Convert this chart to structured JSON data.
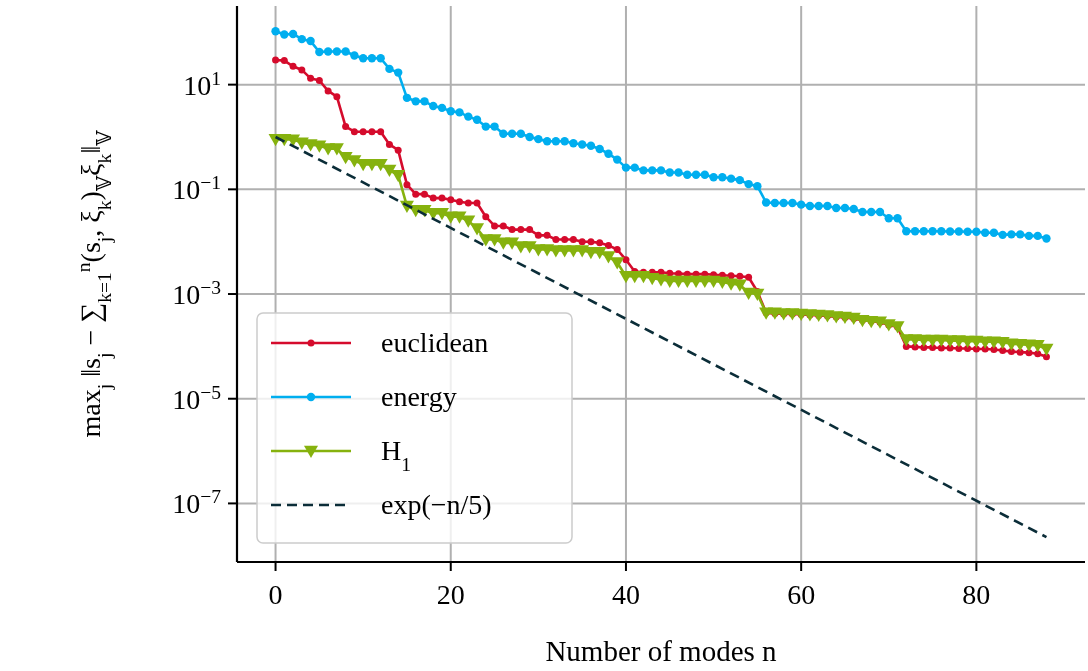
{
  "chart_data": {
    "type": "line",
    "xlabel": "Number of modes n",
    "ylabel": "max$_{j}$ ‖s$_{j}$ − ∑$_{k=1}$$^{n}$(s$_{j}$, ξ$_{k}$)$_{𝕍}$ξ$_{k}$‖$_{𝕍}$",
    "x": [
      0,
      1,
      2,
      3,
      4,
      5,
      6,
      7,
      8,
      9,
      10,
      11,
      12,
      13,
      14,
      15,
      16,
      17,
      18,
      19,
      20,
      21,
      22,
      23,
      24,
      25,
      26,
      27,
      28,
      29,
      30,
      31,
      32,
      33,
      34,
      35,
      36,
      37,
      38,
      39,
      40,
      41,
      42,
      43,
      44,
      45,
      46,
      47,
      48,
      49,
      50,
      51,
      52,
      53,
      54,
      55,
      56,
      57,
      58,
      59,
      60,
      61,
      62,
      63,
      64,
      65,
      66,
      67,
      68,
      69,
      70,
      71,
      72,
      73,
      74,
      75,
      76,
      77,
      78,
      79,
      80,
      81,
      82,
      83,
      84,
      85,
      86,
      87,
      88
    ],
    "series": [
      {
        "name": "euclidean",
        "color": "#d50b2c",
        "marker": "circle",
        "line_style": "solid",
        "values": [
          29.5,
          28.8,
          22.4,
          19.1,
          13.2,
          12.0,
          7.6,
          5.9,
          1.58,
          1.26,
          1.26,
          1.26,
          1.26,
          0.72,
          0.56,
          0.123,
          0.081,
          0.081,
          0.068,
          0.068,
          0.063,
          0.058,
          0.055,
          0.055,
          0.03,
          0.02,
          0.02,
          0.017,
          0.017,
          0.017,
          0.0132,
          0.0132,
          0.011,
          0.011,
          0.011,
          0.01,
          0.01,
          0.0095,
          0.0085,
          0.0071,
          0.0045,
          0.0027,
          0.0026,
          0.0026,
          0.0026,
          0.0025,
          0.00245,
          0.0024,
          0.0024,
          0.0024,
          0.00234,
          0.00229,
          0.00224,
          0.00219,
          0.00209,
          0.00112,
          0.000437,
          0.000427,
          0.000417,
          0.000417,
          0.000407,
          0.000398,
          0.000389,
          0.00038,
          0.000363,
          0.000355,
          0.000339,
          0.000316,
          0.000302,
          0.000288,
          0.000257,
          0.000234,
          0.0001,
          9.77e-05,
          9.55e-05,
          9.55e-05,
          9.33e-05,
          9.33e-05,
          9.12e-05,
          9.12e-05,
          8.91e-05,
          8.91e-05,
          8.71e-05,
          8.32e-05,
          7.94e-05,
          7.76e-05,
          7.59e-05,
          7.24e-05,
          6.31e-05
        ]
      },
      {
        "name": "energy",
        "color": "#00aeef",
        "marker": "circle",
        "line_style": "solid",
        "values": [
          105,
          91,
          93,
          74,
          68,
          42,
          43,
          43,
          43,
          36,
          32,
          32,
          32,
          20,
          17,
          5.6,
          4.8,
          4.8,
          3.9,
          3.6,
          3.1,
          2.95,
          2.45,
          2.14,
          1.58,
          1.58,
          1.15,
          1.15,
          1.15,
          1.0,
          0.91,
          0.83,
          0.83,
          0.83,
          0.76,
          0.72,
          0.68,
          0.59,
          0.48,
          0.37,
          0.26,
          0.26,
          0.23,
          0.23,
          0.23,
          0.21,
          0.21,
          0.19,
          0.19,
          0.19,
          0.17,
          0.17,
          0.16,
          0.15,
          0.126,
          0.115,
          0.056,
          0.055,
          0.055,
          0.055,
          0.051,
          0.048,
          0.048,
          0.048,
          0.044,
          0.044,
          0.042,
          0.037,
          0.037,
          0.037,
          0.028,
          0.028,
          0.0158,
          0.0158,
          0.0158,
          0.0158,
          0.0158,
          0.0157,
          0.0157,
          0.0155,
          0.0155,
          0.0148,
          0.0148,
          0.0135,
          0.0138,
          0.0138,
          0.0129,
          0.0129,
          0.0115
        ]
      },
      {
        "name": "H$_{1}$",
        "color": "#86b20e",
        "marker": "triangle",
        "line_style": "solid",
        "values": [
          0.91,
          0.91,
          0.89,
          0.78,
          0.72,
          0.68,
          0.6,
          0.6,
          0.41,
          0.355,
          0.3,
          0.3,
          0.3,
          0.234,
          0.186,
          0.048,
          0.04,
          0.04,
          0.035,
          0.035,
          0.03,
          0.03,
          0.025,
          0.0178,
          0.011,
          0.011,
          0.0095,
          0.0095,
          0.0081,
          0.0081,
          0.0071,
          0.0071,
          0.0068,
          0.0068,
          0.0068,
          0.0068,
          0.0063,
          0.0063,
          0.0052,
          0.004,
          0.00219,
          0.00219,
          0.00219,
          0.002,
          0.0019,
          0.00178,
          0.00178,
          0.00178,
          0.00178,
          0.00178,
          0.00178,
          0.0017,
          0.00158,
          0.00151,
          0.00105,
          0.001,
          0.000437,
          0.000437,
          0.000427,
          0.000427,
          0.000417,
          0.000407,
          0.000398,
          0.000389,
          0.000372,
          0.000363,
          0.000347,
          0.000316,
          0.000302,
          0.000295,
          0.000263,
          0.00024,
          0.000135,
          0.000135,
          0.000132,
          0.000132,
          0.000132,
          0.000129,
          0.000129,
          0.000126,
          0.000126,
          0.000123,
          0.000123,
          0.00012,
          0.000112,
          0.00011,
          0.000107,
          0.000105,
          8.91e-05
        ]
      },
      {
        "name": "exp(−n/5)",
        "color": "#0b2d38",
        "marker": "none",
        "line_style": "dashed",
        "x": [
          0,
          88
        ],
        "values": [
          1,
          2.27e-08
        ]
      }
    ],
    "xlim": [
      -4.4,
      92.4
    ],
    "xticks": [
      0,
      20,
      40,
      60,
      80
    ],
    "ylim": [
      7.6e-09,
      318
    ],
    "log": "y",
    "yticks": [
      {
        "value": 10,
        "label": "10$^{1}$"
      },
      {
        "value": 0.1,
        "label": "10$^{−1}$"
      },
      {
        "value": 0.001,
        "label": "10$^{−3}$"
      },
      {
        "value": 1e-05,
        "label": "10$^{−5}$"
      },
      {
        "value": 1e-07,
        "label": "10$^{−7}$"
      }
    ],
    "grid": true,
    "legend": "bottom left"
  }
}
